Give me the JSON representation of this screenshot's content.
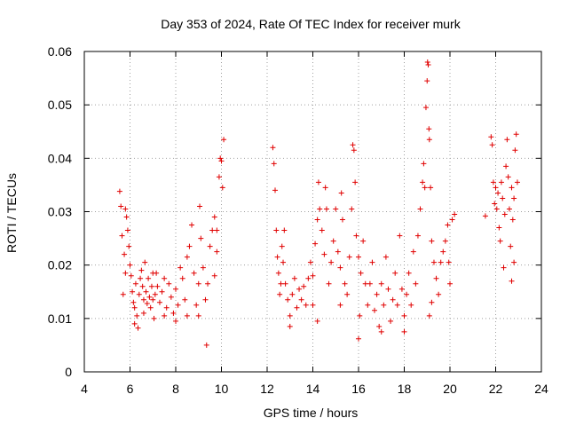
{
  "chart_data": {
    "type": "scatter",
    "title": "Day 353 of 2024, Rate Of TEC Index for receiver murk",
    "xlabel": "GPS time / hours",
    "ylabel": "ROTI / TECUs",
    "xlim": [
      4,
      24
    ],
    "ylim": [
      0,
      0.06
    ],
    "xticks": [
      4,
      6,
      8,
      10,
      12,
      14,
      16,
      18,
      20,
      22,
      24
    ],
    "xtick_labels": [
      "4",
      "6",
      "8",
      "10",
      "12",
      "14",
      "16",
      "18",
      "20",
      "22",
      "24"
    ],
    "yticks": [
      0,
      0.01,
      0.02,
      0.03,
      0.04,
      0.05,
      0.06
    ],
    "ytick_labels": [
      "0",
      "0.01",
      "0.02",
      "0.03",
      "0.04",
      "0.05",
      "0.06"
    ],
    "grid": true,
    "marker": "plus",
    "color": "#e00000",
    "series": [
      {
        "name": "ROTI",
        "points": [
          [
            5.55,
            0.0338
          ],
          [
            5.6,
            0.031
          ],
          [
            5.65,
            0.0255
          ],
          [
            5.7,
            0.0145
          ],
          [
            5.75,
            0.022
          ],
          [
            5.8,
            0.0305
          ],
          [
            5.85,
            0.029
          ],
          [
            5.9,
            0.0265
          ],
          [
            5.95,
            0.0235
          ],
          [
            6.0,
            0.02
          ],
          [
            6.05,
            0.018
          ],
          [
            6.1,
            0.015
          ],
          [
            6.15,
            0.013
          ],
          [
            6.2,
            0.012
          ],
          [
            6.25,
            0.0165
          ],
          [
            6.3,
            0.0105
          ],
          [
            6.35,
            0.0082
          ],
          [
            6.4,
            0.0145
          ],
          [
            6.45,
            0.0175
          ],
          [
            6.5,
            0.019
          ],
          [
            6.55,
            0.016
          ],
          [
            6.6,
            0.0135
          ],
          [
            6.65,
            0.0205
          ],
          [
            6.7,
            0.015
          ],
          [
            6.75,
            0.0128
          ],
          [
            6.8,
            0.0175
          ],
          [
            6.85,
            0.014
          ],
          [
            6.9,
            0.012
          ],
          [
            6.95,
            0.016
          ],
          [
            7.0,
            0.0135
          ],
          [
            7.05,
            0.01
          ],
          [
            7.1,
            0.0145
          ],
          [
            7.15,
            0.0185
          ],
          [
            7.2,
            0.016
          ],
          [
            7.3,
            0.013
          ],
          [
            7.4,
            0.015
          ],
          [
            7.5,
            0.0175
          ],
          [
            7.6,
            0.012
          ],
          [
            7.7,
            0.0165
          ],
          [
            7.8,
            0.014
          ],
          [
            7.9,
            0.011
          ],
          [
            8.0,
            0.0155
          ],
          [
            8.1,
            0.0125
          ],
          [
            8.2,
            0.0195
          ],
          [
            8.3,
            0.0175
          ],
          [
            8.4,
            0.0135
          ],
          [
            8.5,
            0.0215
          ],
          [
            8.6,
            0.0235
          ],
          [
            8.7,
            0.0275
          ],
          [
            8.8,
            0.0185
          ],
          [
            8.9,
            0.0125
          ],
          [
            9.0,
            0.0165
          ],
          [
            9.05,
            0.031
          ],
          [
            9.1,
            0.025
          ],
          [
            9.2,
            0.0195
          ],
          [
            9.3,
            0.0135
          ],
          [
            9.35,
            0.005
          ],
          [
            9.4,
            0.0165
          ],
          [
            9.5,
            0.0235
          ],
          [
            9.6,
            0.0265
          ],
          [
            9.7,
            0.029
          ],
          [
            9.8,
            0.0225
          ],
          [
            9.9,
            0.0365
          ],
          [
            9.95,
            0.04
          ],
          [
            10.0,
            0.0395
          ],
          [
            10.05,
            0.0345
          ],
          [
            10.1,
            0.0435
          ],
          [
            5.8,
            0.0185
          ],
          [
            6.2,
            0.009
          ],
          [
            6.6,
            0.011
          ],
          [
            7.0,
            0.0185
          ],
          [
            7.5,
            0.0105
          ],
          [
            8.0,
            0.0095
          ],
          [
            8.5,
            0.0105
          ],
          [
            9.0,
            0.0105
          ],
          [
            9.7,
            0.018
          ],
          [
            9.8,
            0.0265
          ],
          [
            12.25,
            0.042
          ],
          [
            12.3,
            0.039
          ],
          [
            12.35,
            0.034
          ],
          [
            12.4,
            0.0265
          ],
          [
            12.45,
            0.0215
          ],
          [
            12.5,
            0.0185
          ],
          [
            12.55,
            0.0145
          ],
          [
            12.6,
            0.0165
          ],
          [
            12.65,
            0.0235
          ],
          [
            12.7,
            0.0205
          ],
          [
            12.75,
            0.0265
          ],
          [
            12.8,
            0.0165
          ],
          [
            12.9,
            0.0135
          ],
          [
            13.0,
            0.0105
          ],
          [
            13.1,
            0.0145
          ],
          [
            13.2,
            0.0175
          ],
          [
            13.3,
            0.012
          ],
          [
            13.4,
            0.0155
          ],
          [
            13.5,
            0.0135
          ],
          [
            13.6,
            0.016
          ],
          [
            13.7,
            0.0125
          ],
          [
            13.8,
            0.0175
          ],
          [
            13.9,
            0.0205
          ],
          [
            14.0,
            0.018
          ],
          [
            14.1,
            0.024
          ],
          [
            14.2,
            0.0285
          ],
          [
            14.25,
            0.0355
          ],
          [
            14.3,
            0.0305
          ],
          [
            14.4,
            0.0265
          ],
          [
            14.5,
            0.022
          ],
          [
            14.55,
            0.0345
          ],
          [
            14.6,
            0.0305
          ],
          [
            14.7,
            0.0165
          ],
          [
            14.8,
            0.0205
          ],
          [
            14.9,
            0.0245
          ],
          [
            15.0,
            0.0305
          ],
          [
            15.1,
            0.0225
          ],
          [
            15.2,
            0.0195
          ],
          [
            15.25,
            0.0335
          ],
          [
            15.3,
            0.0285
          ],
          [
            15.4,
            0.0165
          ],
          [
            15.5,
            0.0145
          ],
          [
            15.6,
            0.0215
          ],
          [
            15.7,
            0.0305
          ],
          [
            15.75,
            0.0425
          ],
          [
            15.8,
            0.0415
          ],
          [
            15.85,
            0.0355
          ],
          [
            15.9,
            0.0255
          ],
          [
            16.0,
            0.0215
          ],
          [
            16.05,
            0.0105
          ],
          [
            16.1,
            0.0185
          ],
          [
            16.2,
            0.0245
          ],
          [
            16.3,
            0.0165
          ],
          [
            16.4,
            0.0125
          ],
          [
            16.5,
            0.0165
          ],
          [
            16.6,
            0.0205
          ],
          [
            16.7,
            0.0115
          ],
          [
            16.8,
            0.0145
          ],
          [
            16.9,
            0.0085
          ],
          [
            17.0,
            0.0165
          ],
          [
            17.1,
            0.0125
          ],
          [
            17.2,
            0.0215
          ],
          [
            17.3,
            0.0155
          ],
          [
            17.4,
            0.0095
          ],
          [
            17.5,
            0.0135
          ],
          [
            17.6,
            0.0185
          ],
          [
            17.7,
            0.0125
          ],
          [
            17.8,
            0.0255
          ],
          [
            17.9,
            0.0155
          ],
          [
            18.0,
            0.0105
          ],
          [
            18.1,
            0.0145
          ],
          [
            18.2,
            0.0185
          ],
          [
            18.3,
            0.0125
          ],
          [
            18.4,
            0.0225
          ],
          [
            18.5,
            0.0165
          ],
          [
            18.6,
            0.0255
          ],
          [
            18.7,
            0.0305
          ],
          [
            18.8,
            0.0355
          ],
          [
            18.85,
            0.039
          ],
          [
            18.9,
            0.0345
          ],
          [
            18.95,
            0.0495
          ],
          [
            19.0,
            0.0545
          ],
          [
            19.02,
            0.058
          ],
          [
            19.05,
            0.0575
          ],
          [
            19.08,
            0.0455
          ],
          [
            19.1,
            0.0435
          ],
          [
            19.15,
            0.0345
          ],
          [
            19.2,
            0.0245
          ],
          [
            19.3,
            0.0205
          ],
          [
            19.4,
            0.0175
          ],
          [
            19.5,
            0.0145
          ],
          [
            19.6,
            0.0205
          ],
          [
            19.7,
            0.0225
          ],
          [
            19.8,
            0.0245
          ],
          [
            19.9,
            0.0275
          ],
          [
            19.95,
            0.0205
          ],
          [
            20.0,
            0.0165
          ],
          [
            20.1,
            0.0285
          ],
          [
            16.0,
            0.0062
          ],
          [
            15.2,
            0.0125
          ],
          [
            14.0,
            0.0125
          ],
          [
            13.0,
            0.0085
          ],
          [
            18.0,
            0.0075
          ],
          [
            17.0,
            0.0075
          ],
          [
            14.2,
            0.0095
          ],
          [
            19.2,
            0.013
          ],
          [
            19.1,
            0.0105
          ],
          [
            20.2,
            0.0295
          ],
          [
            21.55,
            0.0292
          ],
          [
            21.8,
            0.044
          ],
          [
            21.85,
            0.0425
          ],
          [
            21.9,
            0.0355
          ],
          [
            21.95,
            0.0315
          ],
          [
            22.0,
            0.0345
          ],
          [
            22.05,
            0.0305
          ],
          [
            22.1,
            0.0335
          ],
          [
            22.15,
            0.027
          ],
          [
            22.2,
            0.0245
          ],
          [
            22.25,
            0.0355
          ],
          [
            22.3,
            0.0325
          ],
          [
            22.35,
            0.0195
          ],
          [
            22.4,
            0.0295
          ],
          [
            22.45,
            0.0385
          ],
          [
            22.5,
            0.0435
          ],
          [
            22.55,
            0.0365
          ],
          [
            22.6,
            0.0305
          ],
          [
            22.65,
            0.0235
          ],
          [
            22.7,
            0.0345
          ],
          [
            22.75,
            0.0285
          ],
          [
            22.8,
            0.0325
          ],
          [
            22.85,
            0.0415
          ],
          [
            22.9,
            0.0445
          ],
          [
            22.95,
            0.0355
          ],
          [
            22.7,
            0.017
          ],
          [
            22.8,
            0.0205
          ]
        ]
      }
    ]
  }
}
